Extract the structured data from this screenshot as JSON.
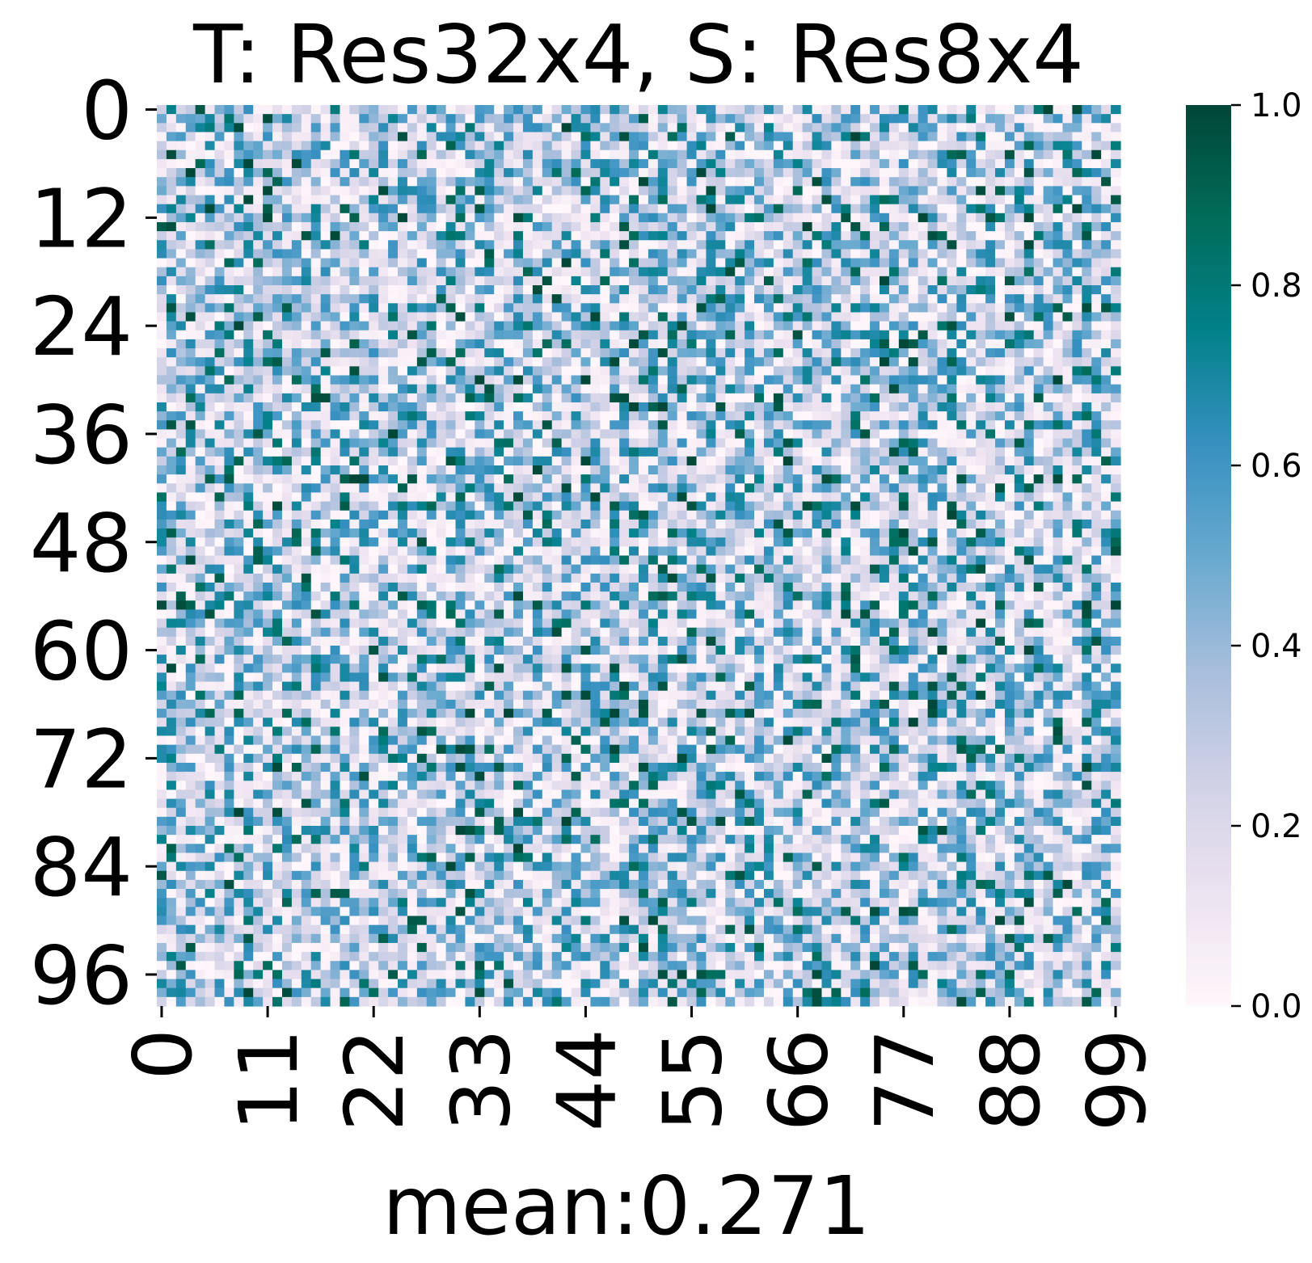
{
  "chart_data": {
    "type": "heatmap",
    "title": "T: Res32x4, S: Res8x4",
    "xlabel": "mean:0.271",
    "ylabel": "",
    "rows": 100,
    "cols": 100,
    "x_ticks": [
      0,
      11,
      22,
      33,
      44,
      55,
      66,
      77,
      88,
      99
    ],
    "y_ticks": [
      0,
      12,
      24,
      36,
      48,
      60,
      72,
      84,
      96
    ],
    "x_tick_labels": [
      "0",
      "11",
      "22",
      "33",
      "44",
      "55",
      "66",
      "77",
      "88",
      "99"
    ],
    "y_tick_labels": [
      "0",
      "12",
      "24",
      "36",
      "48",
      "60",
      "72",
      "84",
      "96"
    ],
    "value_range": [
      0.0,
      1.0
    ],
    "mean": 0.271,
    "colormap": "PuBuGn",
    "colormap_stops": [
      {
        "v": 0.0,
        "color": "#fff7fb"
      },
      {
        "v": 0.125,
        "color": "#ece2f0"
      },
      {
        "v": 0.25,
        "color": "#d0d1e6"
      },
      {
        "v": 0.375,
        "color": "#a6bddb"
      },
      {
        "v": 0.5,
        "color": "#67a9cf"
      },
      {
        "v": 0.625,
        "color": "#3690c0"
      },
      {
        "v": 0.75,
        "color": "#02818a"
      },
      {
        "v": 0.875,
        "color": "#016c59"
      },
      {
        "v": 1.0,
        "color": "#014636"
      }
    ],
    "colorbar": {
      "ticks": [
        0.0,
        0.2,
        0.4,
        0.6,
        0.8,
        1.0
      ],
      "tick_labels": [
        "0.0",
        "0.2",
        "0.4",
        "0.6",
        "0.8",
        "1.0"
      ]
    },
    "grid": false,
    "legend": "none"
  }
}
